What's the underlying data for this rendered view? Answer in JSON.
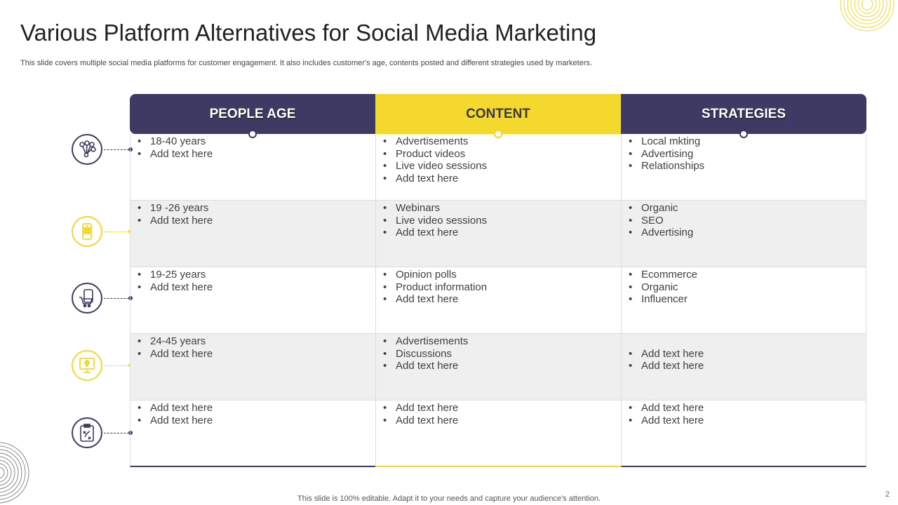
{
  "title": "Various Platform Alternatives for Social Media Marketing",
  "subtitle": "This slide covers multiple social media platforms for customer engagement. It also includes customer's age, contents posted and different strategies used by marketers.",
  "colors": {
    "navy": "#3d3b63",
    "yellow": "#f5d82e",
    "row_gray": "#efefef"
  },
  "table": {
    "headers": [
      "PEOPLE AGE",
      "CONTENT",
      "STRATEGIES"
    ],
    "rows": [
      {
        "cells": [
          [
            "18-40 years",
            "Add text here"
          ],
          [
            "Advertisements",
            "Product videos",
            "Live video sessions",
            "Add text here"
          ],
          [
            "Local mkting",
            "Advertising",
            "Relationships"
          ]
        ]
      },
      {
        "cells": [
          [
            "19 -26 years",
            "Add text here"
          ],
          [
            "Webinars",
            "Live video sessions",
            "Add text here"
          ],
          [
            "Organic",
            "SEO",
            "Advertising"
          ]
        ]
      },
      {
        "cells": [
          [
            "19-25 years",
            "Add text here"
          ],
          [
            "Opinion polls",
            "Product information",
            "Add text here"
          ],
          [
            "Ecommerce",
            "Organic",
            "Influencer"
          ]
        ]
      },
      {
        "cells": [
          [
            "24-45 years",
            "Add text here"
          ],
          [
            "Advertisements",
            "Discussions",
            "Add text here"
          ],
          [
            "",
            "Add text here",
            "Add text here"
          ]
        ]
      },
      {
        "cells": [
          [
            "Add text here",
            "Add text here"
          ],
          [
            "Add text here",
            "Add text here"
          ],
          [
            "Add text here",
            "Add text here"
          ]
        ]
      }
    ]
  },
  "row_icons": [
    "network-icon",
    "mobile-ad-icon",
    "mobile-shopping-cart-icon",
    "monitor-idea-icon",
    "clipboard-strategy-icon"
  ],
  "footer": "This slide is 100% editable. Adapt it to your needs and capture your audience's attention.",
  "page_number": "2"
}
